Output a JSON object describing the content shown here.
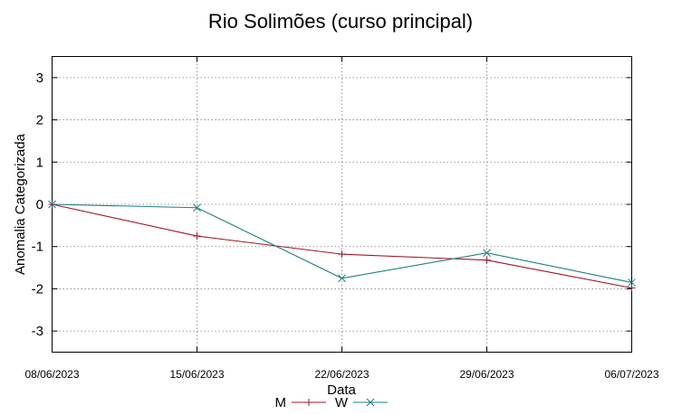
{
  "chart_data": {
    "type": "line",
    "title": "Rio Solimões (curso principal)",
    "xlabel": "Data",
    "ylabel": "Anomalia Categorizada",
    "categories": [
      "08/06/2023",
      "15/06/2023",
      "22/06/2023",
      "29/06/2023",
      "06/07/2023"
    ],
    "ylim": [
      -3.5,
      3.5
    ],
    "yticks": [
      3,
      2,
      1,
      0,
      -1,
      -2,
      -3
    ],
    "grid": true,
    "legend_position": "bottom-center",
    "series": [
      {
        "name": "M",
        "color": "#a0142a",
        "marker": "plus",
        "values": [
          0,
          -0.75,
          -1.18,
          -1.32,
          -1.98
        ]
      },
      {
        "name": "W",
        "color": "#1f7f7f",
        "marker": "x",
        "values": [
          0,
          -0.08,
          -1.75,
          -1.15,
          -1.85
        ]
      }
    ]
  }
}
